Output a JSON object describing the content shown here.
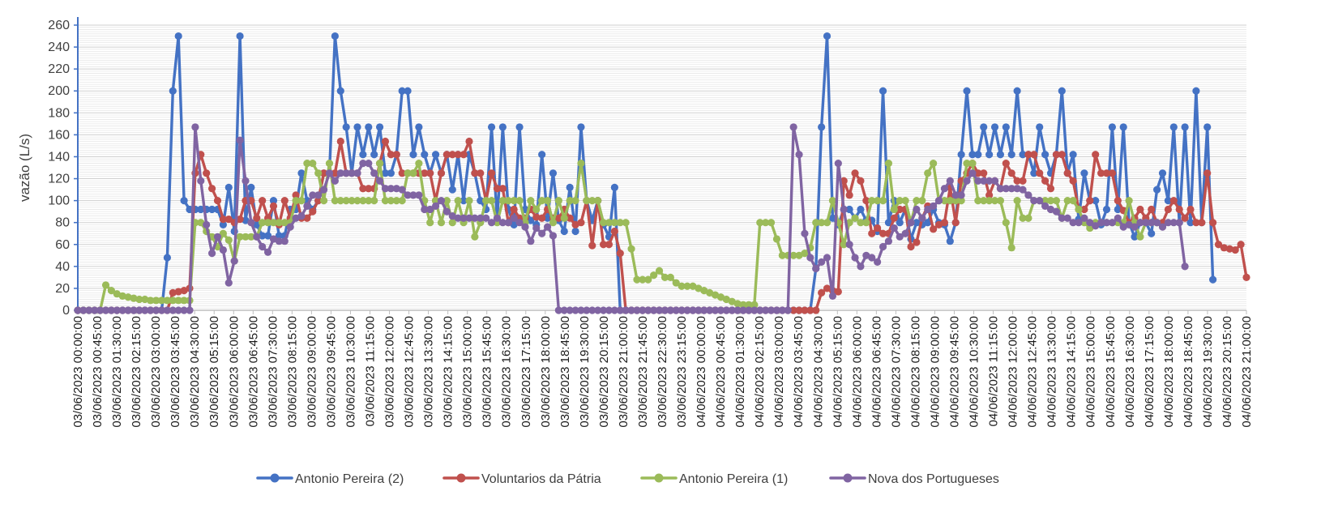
{
  "chart_data": {
    "type": "line",
    "title": "",
    "xlabel": "",
    "ylabel": "vazão (L/s)",
    "ylim": [
      0,
      260
    ],
    "yticks": [
      0,
      20,
      40,
      60,
      80,
      100,
      120,
      140,
      160,
      180,
      200,
      220,
      240,
      260
    ],
    "grid": true,
    "legend_position": "bottom",
    "x_tick_labels": [
      "03/06/2023 00:00:00",
      "03/06/2023 00:45:00",
      "03/06/2023 01:30:00",
      "03/06/2023 02:15:00",
      "03/06/2023 03:00:00",
      "03/06/2023 03:45:00",
      "03/06/2023 04:30:00",
      "03/06/2023 05:15:00",
      "03/06/2023 06:00:00",
      "03/06/2023 06:45:00",
      "03/06/2023 07:30:00",
      "03/06/2023 08:15:00",
      "03/06/2023 09:00:00",
      "03/06/2023 09:45:00",
      "03/06/2023 10:30:00",
      "03/06/2023 11:15:00",
      "03/06/2023 12:00:00",
      "03/06/2023 12:45:00",
      "03/06/2023 13:30:00",
      "03/06/2023 14:15:00",
      "03/06/2023 15:00:00",
      "03/06/2023 15:45:00",
      "03/06/2023 16:30:00",
      "03/06/2023 17:15:00",
      "03/06/2023 18:00:00",
      "03/06/2023 18:45:00",
      "03/06/2023 19:30:00",
      "03/06/2023 20:15:00",
      "03/06/2023 21:00:00",
      "03/06/2023 21:45:00",
      "03/06/2023 22:30:00",
      "03/06/2023 23:15:00",
      "04/06/2023 00:00:00",
      "04/06/2023 00:45:00",
      "04/06/2023 01:30:00",
      "04/06/2023 02:15:00",
      "04/06/2023 03:00:00",
      "04/06/2023 03:45:00",
      "04/06/2023 04:30:00",
      "04/06/2023 05:15:00",
      "04/06/2023 06:00:00",
      "04/06/2023 06:45:00",
      "04/06/2023 07:30:00",
      "04/06/2023 08:15:00",
      "04/06/2023 09:00:00",
      "04/06/2023 09:45:00",
      "04/06/2023 10:30:00",
      "04/06/2023 11:15:00",
      "04/06/2023 12:00:00",
      "04/06/2023 12:45:00",
      "04/06/2023 13:30:00",
      "04/06/2023 14:15:00",
      "04/06/2023 15:00:00",
      "04/06/2023 15:45:00",
      "04/06/2023 16:30:00",
      "04/06/2023 17:15:00",
      "04/06/2023 18:00:00",
      "04/06/2023 18:45:00",
      "04/06/2023 19:30:00",
      "04/06/2023 20:15:00",
      "04/06/2023 21:00:00"
    ],
    "interval_minutes": 15,
    "series": [
      {
        "name": "Antonio Pereira (2)",
        "color": "#4472C4",
        "values": [
          0,
          0,
          0,
          0,
          0,
          0,
          0,
          0,
          0,
          0,
          0,
          0,
          0,
          0,
          0,
          0,
          48,
          200,
          250,
          100,
          92,
          92,
          92,
          92,
          92,
          92,
          78,
          112,
          72,
          250,
          82,
          112,
          78,
          68,
          68,
          100,
          68,
          68,
          92,
          92,
          125,
          100,
          92,
          100,
          125,
          125,
          250,
          200,
          167,
          125,
          167,
          142,
          167,
          142,
          167,
          125,
          125,
          142,
          200,
          200,
          142,
          167,
          142,
          125,
          142,
          125,
          142,
          110,
          142,
          100,
          142,
          125,
          100,
          92,
          167,
          82,
          167,
          92,
          78,
          167,
          92,
          82,
          78,
          142,
          84,
          125,
          82,
          72,
          112,
          72,
          167,
          100,
          82,
          100,
          78,
          67,
          112,
          0,
          0,
          0,
          0,
          0,
          0,
          0,
          0,
          0,
          0,
          0,
          0,
          0,
          0,
          0,
          0,
          0,
          0,
          0,
          0,
          0,
          0,
          0,
          0,
          0,
          0,
          0,
          0,
          0,
          0,
          0,
          0,
          0,
          0,
          0,
          38,
          167,
          250,
          84,
          78,
          92,
          92,
          84,
          92,
          82,
          82,
          72,
          200,
          80,
          100,
          80,
          92,
          65,
          80,
          78,
          80,
          92,
          80,
          78,
          63,
          80,
          142,
          200,
          142,
          142,
          167,
          142,
          167,
          142,
          167,
          142,
          200,
          142,
          142,
          125,
          167,
          142,
          125,
          142,
          200,
          125,
          142,
          83,
          125,
          100,
          100,
          78,
          92,
          167,
          92,
          167,
          80,
          67,
          80,
          80,
          70,
          110,
          125,
          100,
          167,
          80,
          167,
          80,
          200,
          80,
          167,
          28
        ]
      },
      {
        "name": "Voluntarios da Pátria",
        "color": "#C0504D",
        "values": [
          0,
          0,
          0,
          0,
          0,
          0,
          0,
          0,
          0,
          0,
          0,
          0,
          0,
          0,
          0,
          0,
          0,
          16,
          17,
          18,
          20,
          125,
          142,
          125,
          111,
          100,
          83,
          83,
          80,
          83,
          100,
          100,
          84,
          100,
          84,
          95,
          78,
          100,
          84,
          105,
          84,
          84,
          90,
          100,
          125,
          125,
          125,
          154,
          125,
          125,
          125,
          111,
          111,
          111,
          134,
          154,
          142,
          142,
          125,
          125,
          125,
          125,
          125,
          125,
          100,
          125,
          142,
          142,
          142,
          142,
          154,
          125,
          125,
          100,
          125,
          111,
          111,
          80,
          92,
          84,
          84,
          92,
          85,
          84,
          92,
          84,
          84,
          92,
          84,
          78,
          80,
          100,
          59,
          100,
          60,
          60,
          72,
          52,
          0,
          0,
          0,
          0,
          0,
          0,
          0,
          0,
          0,
          0,
          0,
          0,
          0,
          0,
          0,
          0,
          0,
          0,
          0,
          0,
          0,
          0,
          0,
          0,
          0,
          0,
          0,
          0,
          0,
          0,
          0,
          0,
          0,
          0,
          0,
          16,
          20,
          18,
          17,
          118,
          105,
          125,
          118,
          100,
          70,
          75,
          70,
          70,
          84,
          92,
          92,
          58,
          62,
          84,
          95,
          74,
          78,
          80,
          112,
          80,
          118,
          125,
          134,
          125,
          125,
          105,
          118,
          111,
          134,
          125,
          118,
          118,
          142,
          142,
          125,
          118,
          111,
          142,
          142,
          125,
          118,
          92,
          92,
          100,
          142,
          125,
          125,
          125,
          100,
          91,
          80,
          84,
          92,
          84,
          92,
          80,
          80,
          92,
          100,
          92,
          84,
          92,
          80,
          80,
          125,
          80,
          60,
          57,
          56,
          55,
          60,
          30
        ]
      },
      {
        "name": "Antonio Pereira (1)",
        "color": "#9BBB59",
        "values": [
          0,
          0,
          0,
          0,
          0,
          23,
          18,
          15,
          13,
          12,
          11,
          10,
          10,
          9,
          9,
          9,
          9,
          9,
          9,
          9,
          9,
          80,
          80,
          72,
          67,
          58,
          70,
          64,
          45,
          67,
          67,
          67,
          67,
          80,
          80,
          80,
          80,
          80,
          80,
          100,
          100,
          134,
          134,
          125,
          100,
          134,
          100,
          100,
          100,
          100,
          100,
          100,
          100,
          100,
          134,
          100,
          100,
          100,
          100,
          125,
          125,
          134,
          100,
          80,
          100,
          80,
          100,
          80,
          100,
          80,
          100,
          67,
          80,
          100,
          100,
          80,
          100,
          100,
          100,
          100,
          80,
          100,
          92,
          100,
          100,
          80,
          100,
          84,
          100,
          100,
          134,
          100,
          100,
          100,
          80,
          80,
          80,
          80,
          80,
          56,
          28,
          28,
          28,
          32,
          36,
          30,
          30,
          25,
          22,
          22,
          22,
          20,
          18,
          16,
          14,
          12,
          10,
          8,
          6,
          5,
          5,
          5,
          80,
          80,
          80,
          65,
          50,
          50,
          50,
          50,
          52,
          57,
          80,
          80,
          80,
          100,
          80,
          60,
          80,
          84,
          80,
          80,
          100,
          100,
          100,
          134,
          92,
          100,
          100,
          80,
          100,
          100,
          125,
          134,
          100,
          100,
          100,
          100,
          100,
          134,
          134,
          100,
          100,
          100,
          100,
          100,
          80,
          57,
          100,
          84,
          84,
          100,
          100,
          100,
          100,
          100,
          84,
          100,
          100,
          92,
          80,
          75,
          80,
          80,
          80,
          80,
          80,
          80,
          100,
          80,
          67,
          80,
          80,
          80
        ]
      },
      {
        "name": "Nova dos Portugueses",
        "color": "#8064A2",
        "values": [
          0,
          0,
          0,
          0,
          0,
          0,
          0,
          0,
          0,
          0,
          0,
          0,
          0,
          0,
          0,
          0,
          0,
          0,
          0,
          0,
          0,
          167,
          118,
          78,
          52,
          67,
          55,
          25,
          45,
          155,
          118,
          80,
          67,
          58,
          53,
          65,
          63,
          63,
          76,
          84,
          86,
          95,
          105,
          105,
          110,
          125,
          118,
          125,
          125,
          125,
          125,
          134,
          134,
          125,
          118,
          111,
          111,
          111,
          110,
          105,
          105,
          105,
          92,
          92,
          95,
          100,
          90,
          86,
          84,
          84,
          84,
          84,
          84,
          84,
          80,
          84,
          80,
          80,
          84,
          80,
          76,
          63,
          75,
          70,
          76,
          68,
          0,
          0,
          0,
          0,
          0,
          0,
          0,
          0,
          0,
          0,
          0,
          0,
          0,
          0,
          0,
          0,
          0,
          0,
          0,
          0,
          0,
          0,
          0,
          0,
          0,
          0,
          0,
          0,
          0,
          0,
          0,
          0,
          0,
          0,
          0,
          0,
          0,
          0,
          0,
          0,
          0,
          0,
          167,
          142,
          70,
          48,
          38,
          44,
          48,
          13,
          134,
          92,
          60,
          48,
          40,
          50,
          48,
          44,
          58,
          63,
          75,
          67,
          70,
          80,
          92,
          84,
          92,
          95,
          100,
          111,
          118,
          105,
          105,
          118,
          125,
          118,
          118,
          118,
          118,
          111,
          111,
          111,
          111,
          110,
          105,
          100,
          100,
          95,
          92,
          90,
          84,
          84,
          80,
          80,
          84,
          80,
          77,
          80,
          80,
          80,
          84,
          76,
          78,
          76,
          80,
          80,
          80,
          80,
          76,
          80,
          80,
          80,
          40
        ]
      }
    ]
  }
}
